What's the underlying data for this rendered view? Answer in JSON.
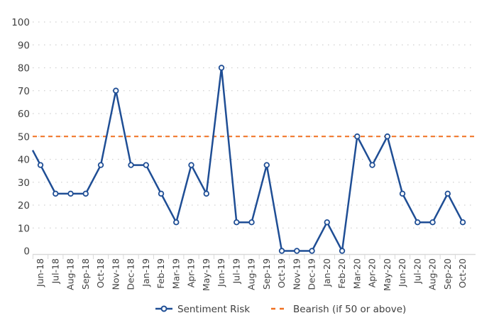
{
  "chart_data": {
    "type": "line",
    "title": "",
    "xlabel": "",
    "ylabel": "",
    "ylim": [
      0,
      100
    ],
    "yticks": [
      "0",
      "10",
      "20",
      "30",
      "40",
      "50",
      "60",
      "70",
      "80",
      "90",
      "100"
    ],
    "grid": true,
    "legend_position": "bottom",
    "categories": [
      "Jun-18",
      "Jul-18",
      "Aug-18",
      "Sep-18",
      "Oct-18",
      "Nov-18",
      "Dec-18",
      "Jan-19",
      "Feb-19",
      "Mar-19",
      "Apr-19",
      "May-19",
      "Jun-19",
      "Jul-19",
      "Aug-19",
      "Sep-19",
      "Oct-19",
      "Nov-19",
      "Dec-19",
      "Jan-20",
      "Feb-20",
      "Mar-20",
      "Apr-20",
      "May-20",
      "Jun-20",
      "Jul-20",
      "Aug-20",
      "Sep-20",
      "Oct-20"
    ],
    "leading_value": 50,
    "series": [
      {
        "name": "Sentiment Risk",
        "color": "#1f4e95",
        "values": [
          37.5,
          25,
          25,
          25,
          37.5,
          70,
          37.5,
          37.5,
          25,
          12.5,
          37.5,
          25,
          80,
          12.5,
          12.5,
          37.5,
          0,
          0,
          0,
          12.5,
          0,
          50,
          37.5,
          50,
          25,
          12.5,
          12.5,
          25,
          12.5
        ]
      },
      {
        "name": "Bearish (if 50 or above)",
        "color": "#f07020",
        "style": "dashed",
        "constant": 50
      }
    ]
  }
}
